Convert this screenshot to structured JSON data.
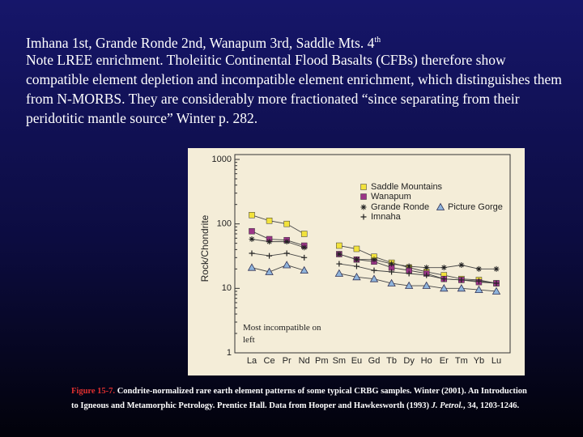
{
  "slide": {
    "heading": "Imhana 1st, Grande Ronde  2nd, Wanapum 3rd, Saddle Mts. 4",
    "heading_sup": "th",
    "note": "Note LREE enrichment. Tholeiitic Continental Flood Basalts (CFBs) therefore show compatible element depletion and incompatible  element enrichment, which distinguishes them from N-MORBS. They are considerably more fractionated “since separating from their peridotitic mantle source” Winter p. 282.",
    "caption": {
      "figure": "Figure 15-7.",
      "text": "Condrite-normalized rare earth element patterns of some typical CRBG samples. Winter (2001). An Introduction to Igneous and Metamorphic Petrology. Prentice Hall.  Data from Hooper and Hawkesworth (1993)",
      "journal": "J. Petrol.",
      "end": ", 34, 1203-1246."
    }
  },
  "chart_data": {
    "type": "line",
    "ylabel": "Rock/Chondrite",
    "annotation": "Most incompatible on left",
    "categories": [
      "La",
      "Ce",
      "Pr",
      "Nd",
      "Pm",
      "Sm",
      "Eu",
      "Gd",
      "Tb",
      "Dy",
      "Ho",
      "Er",
      "Tm",
      "Yb",
      "Lu"
    ],
    "ylim": [
      1,
      1000
    ],
    "yticks": [
      1,
      10,
      100,
      1000
    ],
    "log_scale": true,
    "series": [
      {
        "name": "Saddle Mountains",
        "color": "#f2e23c",
        "marker": "square",
        "values": [
          137,
          112,
          100,
          70,
          null,
          46,
          41,
          31,
          25,
          21,
          18,
          16,
          14,
          13.5,
          12
        ]
      },
      {
        "name": "Wanapum",
        "color": "#9b3487",
        "marker": "square",
        "values": [
          77,
          58,
          56,
          46,
          null,
          34,
          28,
          26,
          21,
          19,
          17,
          14,
          13.5,
          12.5,
          12
        ]
      },
      {
        "name": "Grande Ronde",
        "color": "#222222",
        "marker": "asterisk",
        "values": [
          58,
          53,
          53,
          43,
          null,
          34,
          28,
          28,
          24,
          22,
          21,
          21,
          23,
          20,
          20
        ]
      },
      {
        "name": "Picture Gorge",
        "color": "#8fb4dc",
        "marker": "triangle",
        "values": [
          21,
          18,
          23,
          19,
          null,
          17,
          15,
          14,
          12,
          11,
          11,
          10,
          10,
          9.5,
          9
        ]
      },
      {
        "name": "Imnaha",
        "color": "#222222",
        "marker": "plus",
        "values": [
          35,
          32,
          35,
          30,
          null,
          24,
          22,
          19,
          18,
          17,
          16,
          14,
          13.5,
          13,
          12
        ]
      }
    ]
  }
}
